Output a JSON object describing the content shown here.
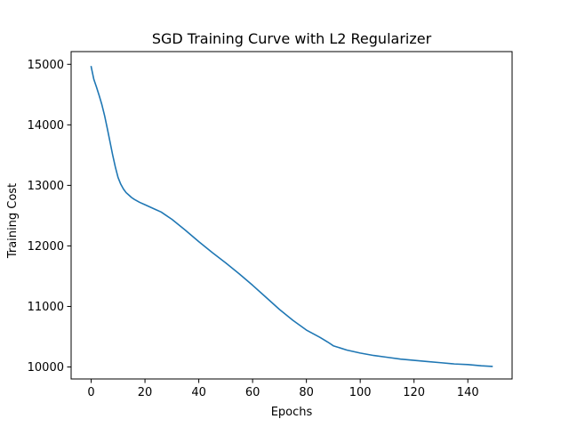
{
  "chart_data": {
    "type": "line",
    "title": "SGD Training Curve with L2 Regularizer",
    "xlabel": "Epochs",
    "ylabel": "Training Cost",
    "xlim": [
      -7.45,
      156.45
    ],
    "ylim": [
      9802,
      15210
    ],
    "xticks": [
      0,
      20,
      40,
      60,
      80,
      100,
      120,
      140
    ],
    "yticks": [
      10000,
      11000,
      12000,
      13000,
      14000,
      15000
    ],
    "grid": false,
    "line_color": "#1f77b4",
    "series": [
      {
        "x": [
          0,
          1,
          2,
          3,
          4,
          5,
          6,
          7,
          8,
          9,
          10,
          11,
          12,
          13,
          14,
          15,
          16,
          18,
          20,
          22,
          24,
          26,
          28,
          30,
          35,
          40,
          45,
          50,
          55,
          60,
          65,
          70,
          75,
          80,
          85,
          88,
          90,
          95,
          100,
          105,
          110,
          115,
          120,
          125,
          130,
          135,
          140,
          145,
          149
        ],
        "y": [
          14960,
          14750,
          14620,
          14480,
          14330,
          14150,
          13940,
          13720,
          13500,
          13300,
          13130,
          13020,
          12940,
          12880,
          12840,
          12800,
          12770,
          12720,
          12680,
          12640,
          12600,
          12560,
          12500,
          12440,
          12260,
          12070,
          11890,
          11720,
          11540,
          11350,
          11150,
          10950,
          10770,
          10610,
          10490,
          10410,
          10350,
          10280,
          10230,
          10190,
          10160,
          10130,
          10110,
          10090,
          10070,
          10050,
          10040,
          10020,
          10010
        ]
      }
    ]
  }
}
